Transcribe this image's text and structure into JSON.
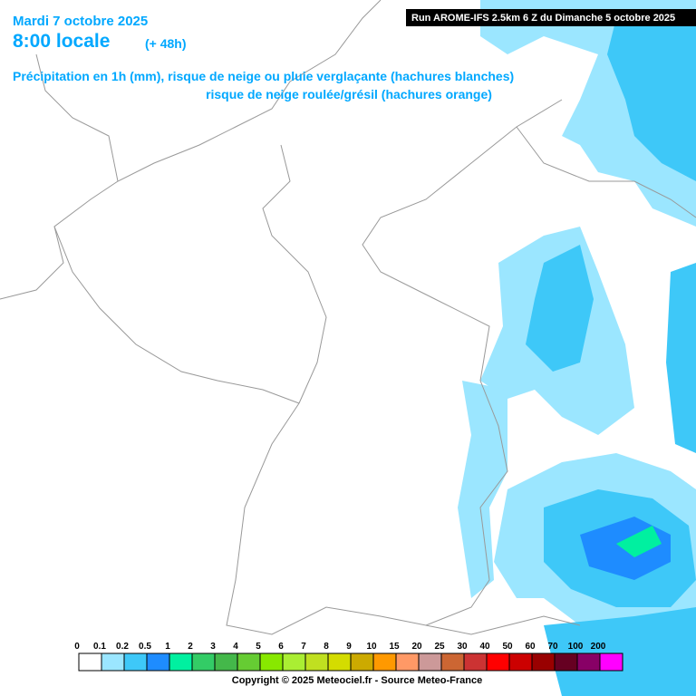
{
  "header": {
    "date": "Mardi 7 octobre 2025",
    "time": "8:00 locale",
    "lead": "(+ 48h)",
    "title_line1": "Précipitation en 1h (mm), risque de neige ou pluie verglaçante (hachures blanches)",
    "title_line2": "risque de neige roulée/grésil (hachures orange)",
    "run": "Run AROME-IFS 2.5km 6 Z du Dimanche 5 octobre 2025"
  },
  "legend": {
    "values": [
      0,
      0.1,
      0.2,
      0.5,
      1,
      2,
      3,
      4,
      5,
      6,
      7,
      8,
      9,
      10,
      15,
      20,
      25,
      30,
      40,
      50,
      60,
      70,
      100,
      200
    ],
    "colors": [
      "#ffffff",
      "#9be6ff",
      "#3ec8f8",
      "#1e8cff",
      "#00f0a0",
      "#33cc66",
      "#44b84a",
      "#66cc33",
      "#88e800",
      "#aaee33",
      "#c0e020",
      "#d4dc00",
      "#ccaa00",
      "#ff9900",
      "#ff9966",
      "#cc9999",
      "#cc6633",
      "#cc3333",
      "#ff0000",
      "#cc0000",
      "#990000",
      "#660022",
      "#880066",
      "#ff00ff"
    ]
  },
  "footer": {
    "copyright": "Copyright © 2025 Meteociel.fr - Source Meteo-France"
  }
}
